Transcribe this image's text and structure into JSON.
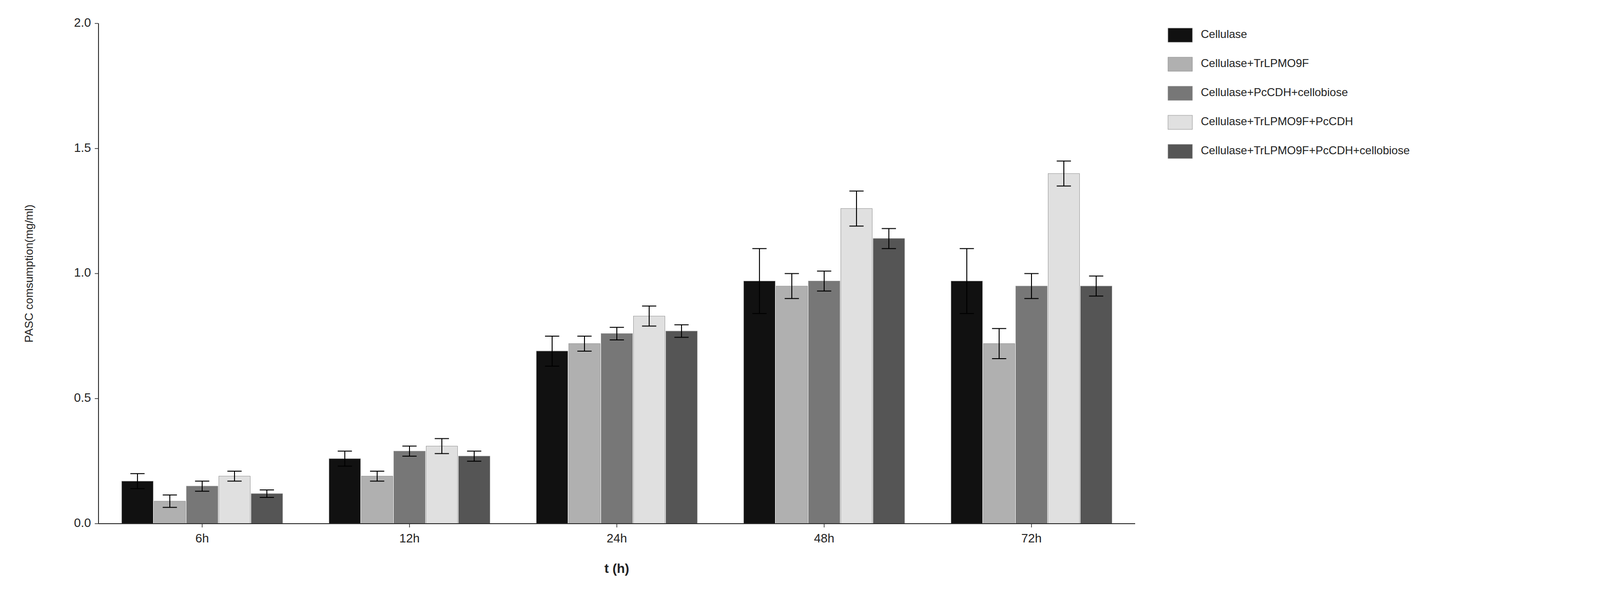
{
  "chart_data": {
    "type": "bar",
    "xlabel": "t (h)",
    "ylabel": "PASC comsumption(mg/ml)",
    "categories": [
      "6h",
      "12h",
      "24h",
      "48h",
      "72h"
    ],
    "series": [
      {
        "name": "Cellulase",
        "color": "#111111",
        "values": [
          0.17,
          0.26,
          0.69,
          0.97,
          0.97
        ],
        "errors": [
          0.03,
          0.03,
          0.06,
          0.13,
          0.13
        ]
      },
      {
        "name": "Cellulase+TrLPMO9F",
        "color": "#b0b0b0",
        "values": [
          0.09,
          0.19,
          0.72,
          0.95,
          0.72
        ],
        "errors": [
          0.025,
          0.02,
          0.03,
          0.05,
          0.06
        ]
      },
      {
        "name": "Cellulase+PcCDH+cellobiose",
        "color": "#777777",
        "values": [
          0.15,
          0.29,
          0.76,
          0.97,
          0.95
        ],
        "errors": [
          0.02,
          0.02,
          0.025,
          0.04,
          0.05
        ]
      },
      {
        "name": "Cellulase+TrLPMO9F+PcCDH",
        "color": "#e0e0e0",
        "values": [
          0.19,
          0.31,
          0.83,
          1.26,
          1.4
        ],
        "errors": [
          0.02,
          0.03,
          0.04,
          0.07,
          0.05
        ]
      },
      {
        "name": "Cellulase+TrLPMO9F+PcCDH+cellobiose",
        "color": "#555555",
        "values": [
          0.12,
          0.27,
          0.77,
          1.14,
          0.95
        ],
        "errors": [
          0.015,
          0.02,
          0.025,
          0.04,
          0.04
        ]
      }
    ],
    "ylim": [
      0,
      2.0
    ],
    "yticks": [
      {
        "value": 0.0,
        "label": "0.0"
      },
      0.5,
      {
        "value": 1.0,
        "label": "1.0"
      },
      1.5,
      {
        "value": 2.0,
        "label": "2.0"
      }
    ],
    "grid": false,
    "legend": "right"
  }
}
